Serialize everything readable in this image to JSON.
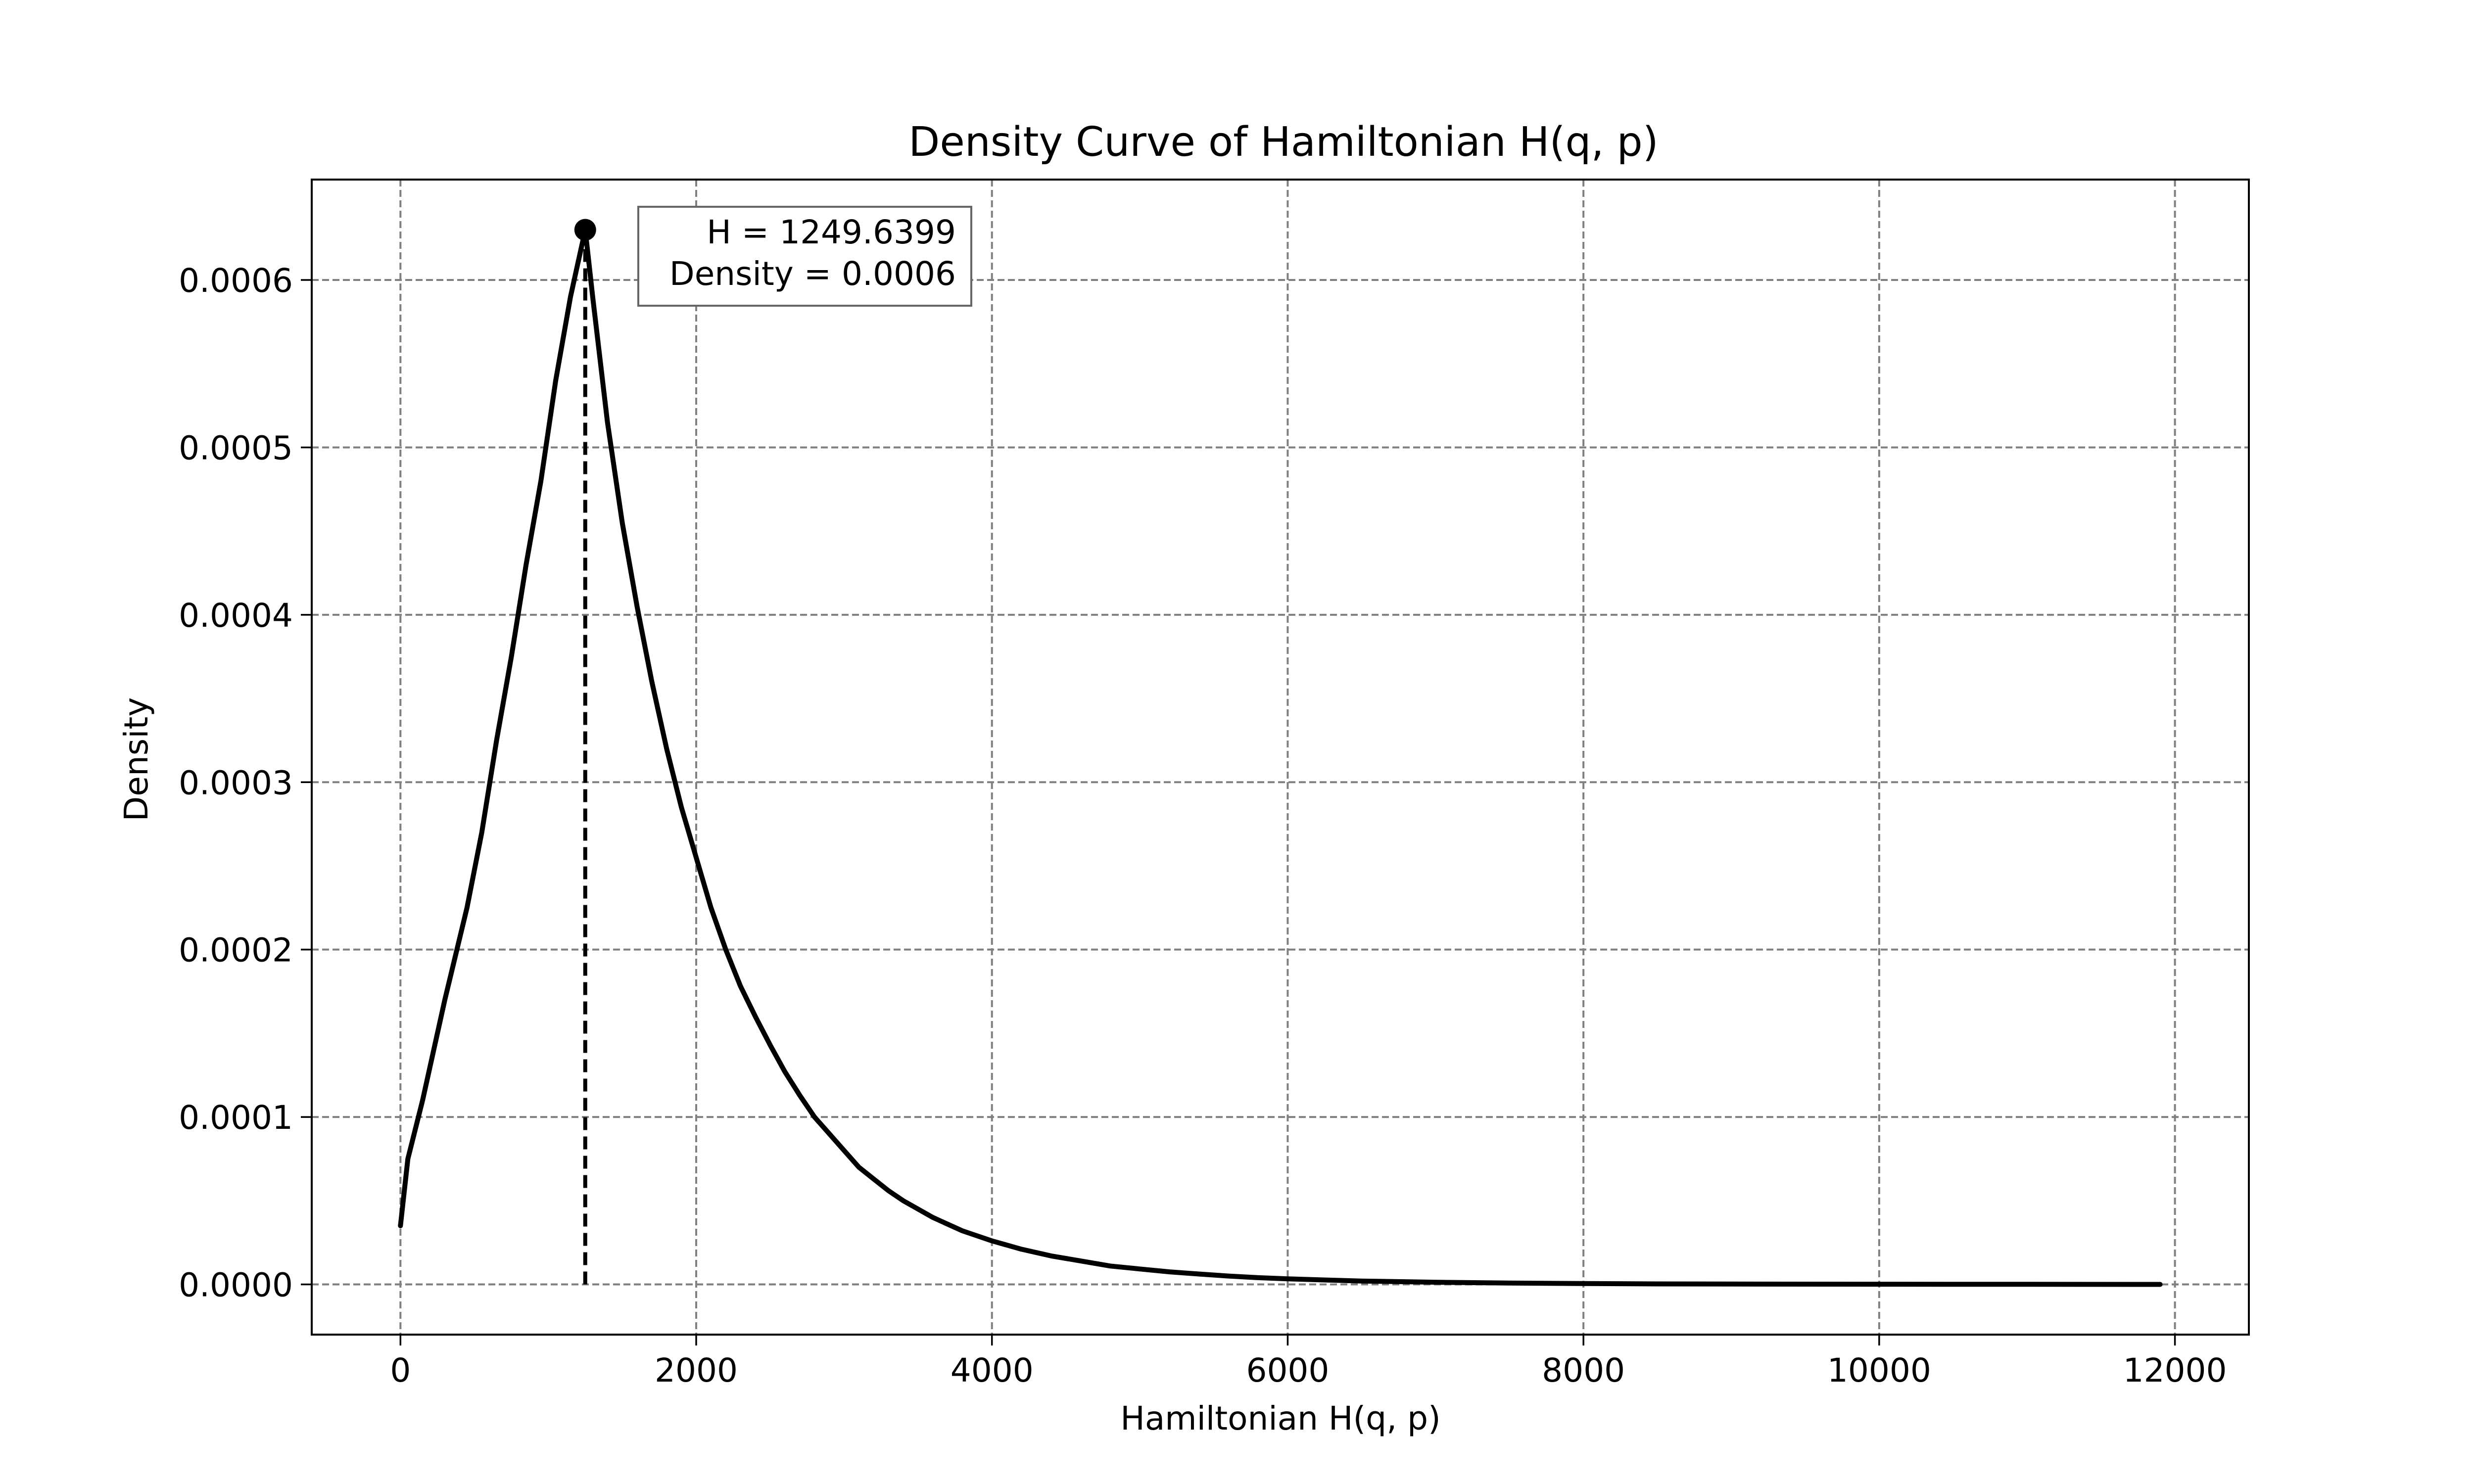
{
  "chart_data": {
    "type": "line",
    "title": "Density Curve of Hamiltonian H(q, p)",
    "xlabel": "Hamiltonian H(q, p)",
    "ylabel": "Density",
    "xlim": [
      -600,
      12500
    ],
    "ylim": [
      -3e-05,
      0.00066
    ],
    "xticks": [
      0,
      2000,
      4000,
      6000,
      8000,
      10000,
      12000
    ],
    "yticks": [
      0.0,
      0.0001,
      0.0002,
      0.0003,
      0.0004,
      0.0005,
      0.0006
    ],
    "xtick_labels": [
      "0",
      "2000",
      "4000",
      "6000",
      "8000",
      "10000",
      "12000"
    ],
    "ytick_labels": [
      "0.0000",
      "0.0001",
      "0.0002",
      "0.0003",
      "0.0004",
      "0.0005",
      "0.0006"
    ],
    "grid": true,
    "series": [
      {
        "color": "#000000",
        "x": [
          0,
          50,
          150,
          300,
          450,
          550,
          650,
          750,
          850,
          950,
          1050,
          1150,
          1249.64,
          1300,
          1400,
          1500,
          1600,
          1700,
          1800,
          1900,
          2000,
          2100,
          2200,
          2300,
          2400,
          2500,
          2600,
          2700,
          2800,
          2900,
          3000,
          3100,
          3200,
          3300,
          3400,
          3500,
          3600,
          3700,
          3800,
          3900,
          4000,
          4200,
          4400,
          4600,
          4800,
          5000,
          5200,
          5400,
          5600,
          5800,
          6000,
          6500,
          7000,
          7500,
          8000,
          8500,
          9000,
          10000,
          11000,
          11900
        ],
        "y": [
          3.5e-05,
          7.5e-05,
          0.00011,
          0.00017,
          0.000225,
          0.00027,
          0.000325,
          0.000375,
          0.00043,
          0.00048,
          0.00054,
          0.00059,
          0.00063,
          0.00059,
          0.000515,
          0.000455,
          0.000405,
          0.00036,
          0.00032,
          0.000285,
          0.000255,
          0.000225,
          0.0002,
          0.000178,
          0.00016,
          0.000143,
          0.000127,
          0.000113,
          0.0001,
          9e-05,
          8e-05,
          7e-05,
          6.3e-05,
          5.6e-05,
          5e-05,
          4.5e-05,
          4e-05,
          3.6e-05,
          3.2e-05,
          2.9e-05,
          2.6e-05,
          2.1e-05,
          1.7e-05,
          1.4e-05,
          1.1e-05,
          9.2e-06,
          7.5e-06,
          6.2e-06,
          5e-06,
          4e-06,
          3.3e-06,
          2e-06,
          1.3e-06,
          8e-07,
          5e-07,
          3e-07,
          2e-07,
          1e-07,
          5e-08,
          0.0
        ]
      }
    ],
    "peak": {
      "x": 1249.6399,
      "y": 0.00063
    },
    "annotation": {
      "line1": "H = 1249.6399",
      "line2": "Density = 0.0006"
    }
  }
}
